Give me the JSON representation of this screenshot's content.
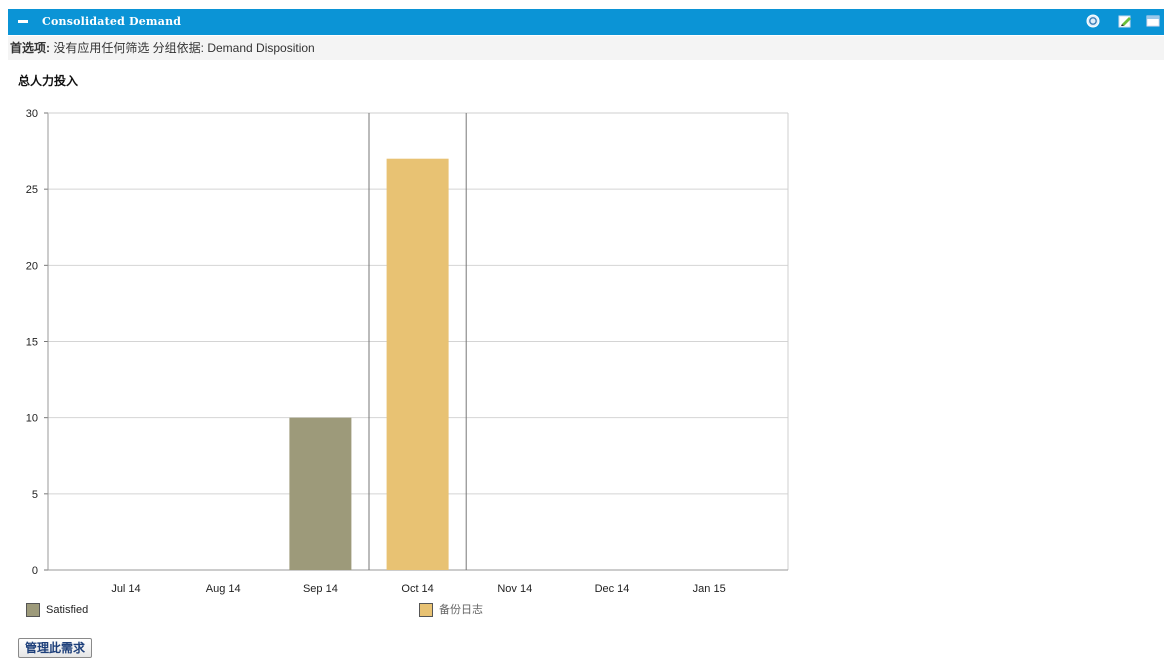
{
  "portlet": {
    "title": "Consolidated Demand",
    "icons": [
      "help-icon",
      "edit-icon",
      "window-icon"
    ]
  },
  "preferences": {
    "label": "首选项:",
    "value": "没有应用任何筛选  分组依据: Demand Disposition"
  },
  "chart_data": {
    "type": "bar",
    "title": "总人力投入",
    "xlabel": "",
    "ylabel": "",
    "ylim": [
      0,
      30
    ],
    "yticks": [
      0,
      5,
      10,
      15,
      20,
      25,
      30
    ],
    "categories": [
      "Jul 14",
      "Aug 14",
      "Sep 14",
      "Oct 14",
      "Nov 14",
      "Dec 14",
      "Jan 15"
    ],
    "series": [
      {
        "name": "Satisfied",
        "color": "#9d9a7a",
        "values": [
          0,
          0,
          10,
          0,
          0,
          0,
          0
        ]
      },
      {
        "name": "备份日志",
        "color": "#e8c273",
        "values": [
          0,
          0,
          0,
          27,
          0,
          0,
          0
        ]
      }
    ],
    "grid": true,
    "legend": "bottom"
  },
  "actions": {
    "manage_label": "管理此需求"
  }
}
